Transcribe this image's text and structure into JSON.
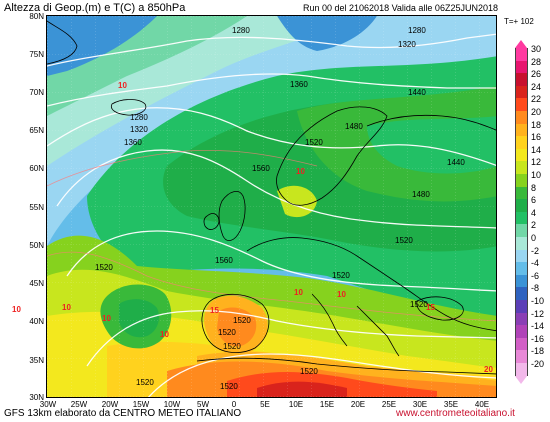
{
  "header": {
    "title": "Altezza di Geop.(m) e T(C) a 850hPa",
    "run": "Run 00 del 21062018  Valida alle 06Z25JUN2018",
    "tplus": "T=+ 102"
  },
  "axes": {
    "lat_labels": [
      "80N",
      "75N",
      "70N",
      "65N",
      "60N",
      "55N",
      "50N",
      "45N",
      "40N",
      "35N",
      "30N"
    ],
    "lon_labels": [
      "30W",
      "25W",
      "20W",
      "15W",
      "10W",
      "5W",
      "0",
      "5E",
      "10E",
      "15E",
      "20E",
      "25E",
      "30E",
      "35E",
      "40E"
    ]
  },
  "legend": {
    "labels": [
      "30",
      "28",
      "26",
      "24",
      "22",
      "20",
      "18",
      "16",
      "14",
      "12",
      "10",
      "8",
      "6",
      "4",
      "2",
      "0",
      "-2",
      "-4",
      "-6",
      "-8",
      "-10",
      "-12",
      "-14",
      "-16",
      "-18",
      "-20"
    ],
    "colors": [
      "#ff3aa0",
      "#e8156f",
      "#c8102e",
      "#d9231c",
      "#ff4a1c",
      "#ff8a1e",
      "#ffb21e",
      "#ffd21e",
      "#f3e81e",
      "#c8e61e",
      "#86d21e",
      "#39b93a",
      "#1fae49",
      "#22c065",
      "#71d7a7",
      "#a9e8d8",
      "#9ad6f2",
      "#64bde9",
      "#3b93d6",
      "#2f63c0",
      "#5b3fb7",
      "#8a3fb5",
      "#b043b8",
      "#d25fc6",
      "#e889d7",
      "#f2b8ea"
    ]
  },
  "contours": {
    "geopotential": [
      "1280",
      "1280",
      "1320",
      "1320",
      "1280",
      "1360",
      "1440",
      "1360",
      "1480",
      "1520",
      "1560",
      "1440",
      "1480",
      "1520",
      "1560",
      "1520",
      "1520",
      "1520",
      "1520",
      "1520",
      "1520",
      "1520",
      "1520",
      "1520"
    ],
    "temperature": [
      "10",
      "10",
      "10",
      "10",
      "10",
      "10",
      "15",
      "15",
      "20",
      "10",
      "10"
    ]
  },
  "footer": {
    "left": "GFS 13km elaborato da CENTRO METEO ITALIANO",
    "right": "www.centrometeoitaliano.it"
  }
}
